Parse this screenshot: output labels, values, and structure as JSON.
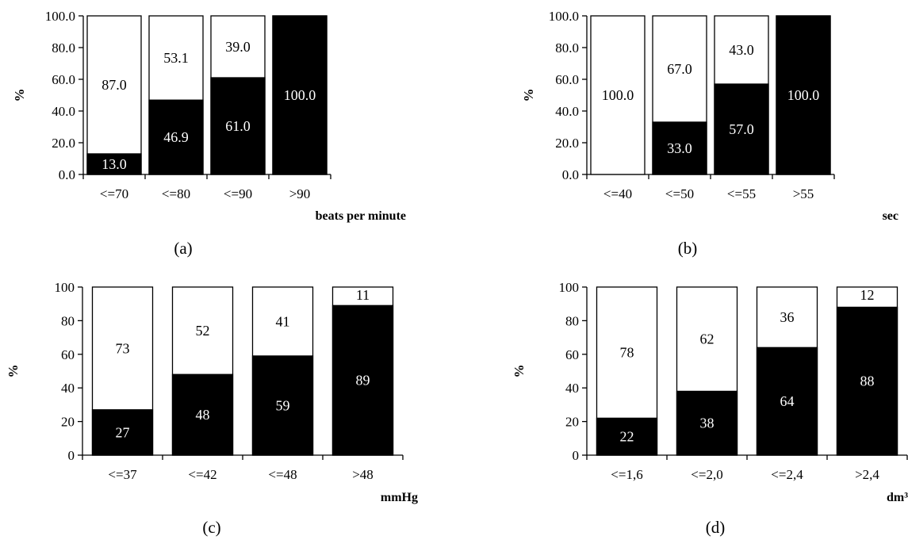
{
  "chart_data": [
    {
      "type": "bar",
      "stacked": true,
      "panel_label": "(a)",
      "categories": [
        "<=70",
        "<=80",
        "<=90",
        ">90"
      ],
      "series": [
        {
          "color": "#000000",
          "values": [
            13.0,
            46.9,
            61.0,
            100.0
          ]
        },
        {
          "color": "#ffffff",
          "values": [
            87.0,
            53.1,
            39.0,
            0
          ]
        }
      ],
      "data_labels": {
        "dark": [
          "13.0",
          "46.9",
          "61.0",
          "100.0"
        ],
        "light": [
          "87.0",
          "53.1",
          "39.0",
          ""
        ]
      },
      "ylabel": "%",
      "xunit": "beats per minute",
      "ylim": [
        0,
        100
      ],
      "yticks": [
        "0.0",
        "20.0",
        "40.0",
        "60.0",
        "80.0",
        "100.0"
      ]
    },
    {
      "type": "bar",
      "stacked": true,
      "panel_label": "(b)",
      "categories": [
        "<=40",
        "<=50",
        "<=55",
        ">55"
      ],
      "series": [
        {
          "color": "#000000",
          "values": [
            0,
            33.0,
            57.0,
            100.0
          ]
        },
        {
          "color": "#ffffff",
          "values": [
            100.0,
            67.0,
            43.0,
            0
          ]
        }
      ],
      "data_labels": {
        "dark": [
          "",
          "33.0",
          "57.0",
          "100.0"
        ],
        "light": [
          "100.0",
          "67.0",
          "43.0",
          ""
        ]
      },
      "ylabel": "%",
      "xunit": "sec",
      "ylim": [
        0,
        100
      ],
      "yticks": [
        "0.0",
        "20.0",
        "40.0",
        "60.0",
        "80.0",
        "100.0"
      ]
    },
    {
      "type": "bar",
      "stacked": true,
      "panel_label": "(c)",
      "categories": [
        "<=37",
        "<=42",
        "<=48",
        ">48"
      ],
      "series": [
        {
          "color": "#000000",
          "values": [
            27,
            48,
            59,
            89
          ]
        },
        {
          "color": "#ffffff",
          "values": [
            73,
            52,
            41,
            11
          ]
        }
      ],
      "data_labels": {
        "dark": [
          "27",
          "48",
          "59",
          "89"
        ],
        "light": [
          "73",
          "52",
          "41",
          "11"
        ]
      },
      "ylabel": "%",
      "xunit": "mmHg",
      "ylim": [
        0,
        100
      ],
      "yticks": [
        "0",
        "20",
        "40",
        "60",
        "80",
        "100"
      ]
    },
    {
      "type": "bar",
      "stacked": true,
      "panel_label": "(d)",
      "categories": [
        "<=1,6",
        "<=2,0",
        "<=2,4",
        ">2,4"
      ],
      "series": [
        {
          "color": "#000000",
          "values": [
            22,
            38,
            64,
            88
          ]
        },
        {
          "color": "#ffffff",
          "values": [
            78,
            62,
            36,
            12
          ]
        }
      ],
      "data_labels": {
        "dark": [
          "22",
          "38",
          "64",
          "88"
        ],
        "light": [
          "78",
          "62",
          "36",
          "12"
        ]
      },
      "ylabel": "%",
      "xunit": "dm³",
      "ylim": [
        0,
        100
      ],
      "yticks": [
        "0",
        "20",
        "40",
        "60",
        "80",
        "100"
      ]
    }
  ]
}
